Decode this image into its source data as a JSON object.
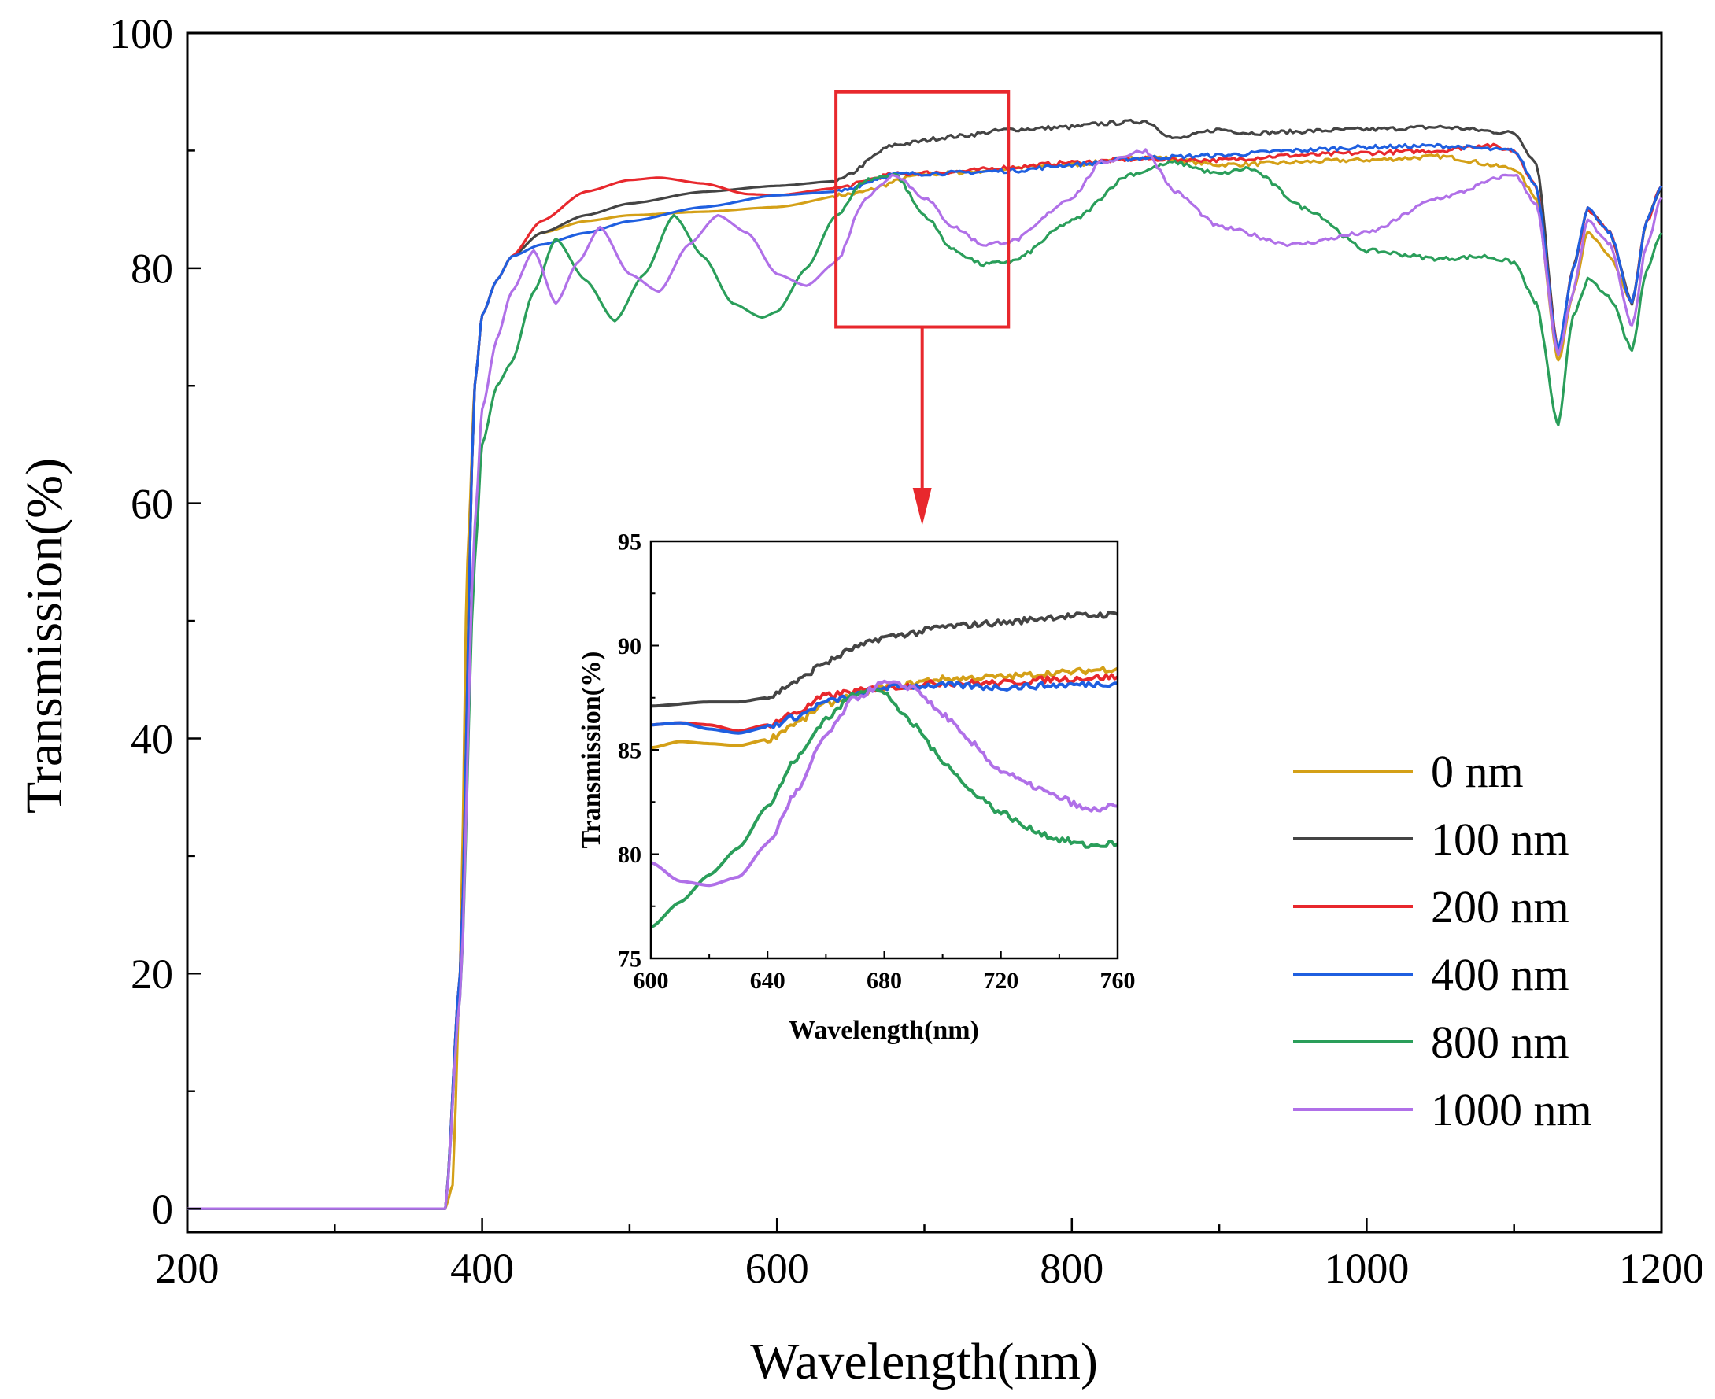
{
  "chart_data": [
    {
      "id": "main",
      "type": "line",
      "title": "",
      "xlabel": "Wavelength(nm)",
      "ylabel": "Transmission(%)",
      "xlim": [
        200,
        1200
      ],
      "ylim": [
        -2,
        100
      ],
      "xticks": [
        200,
        400,
        600,
        800,
        1000,
        1200
      ],
      "xtick_labels": [
        "200",
        "400",
        "600",
        "800",
        "1000",
        "1200"
      ],
      "yticks": [
        0,
        20,
        40,
        60,
        80,
        100
      ],
      "ytick_labels": [
        "0",
        "20",
        "40",
        "60",
        "80",
        "100"
      ],
      "grid": false,
      "legend_position": "bottom-right",
      "series": [
        {
          "name": "0 nm",
          "color": "#d4a017",
          "x": [
            200,
            250,
            300,
            350,
            375,
            380,
            385,
            390,
            395,
            400,
            410,
            420,
            440,
            470,
            500,
            550,
            600,
            650,
            700,
            800,
            850,
            900,
            1000,
            1050,
            1100,
            1115,
            1130,
            1140,
            1150,
            1165,
            1180,
            1190,
            1200
          ],
          "y": [
            0,
            0,
            0,
            0,
            0,
            2,
            20,
            55,
            70,
            76,
            79,
            81,
            83,
            84,
            84.5,
            84.8,
            85.2,
            86.3,
            88,
            88.8,
            89.5,
            88.8,
            89.2,
            89.5,
            88.5,
            86,
            72,
            78,
            83,
            81,
            77,
            84,
            87
          ]
        },
        {
          "name": "100 nm",
          "color": "#444444",
          "x": [
            200,
            375,
            385,
            395,
            400,
            410,
            420,
            440,
            470,
            500,
            550,
            600,
            640,
            680,
            720,
            760,
            800,
            820,
            850,
            870,
            900,
            920,
            1000,
            1050,
            1100,
            1115,
            1130,
            1140,
            1150,
            1165,
            1180,
            1190,
            1200
          ],
          "y": [
            0,
            0,
            20,
            70,
            76,
            79,
            81,
            83,
            84.5,
            85.5,
            86.5,
            87,
            87.4,
            90.5,
            91.2,
            91.8,
            92,
            92.3,
            92.5,
            91,
            91.8,
            91.5,
            91.8,
            92,
            91.5,
            89,
            73,
            80,
            85,
            83,
            77,
            84,
            87
          ]
        },
        {
          "name": "200 nm",
          "color": "#e8282d",
          "x": [
            200,
            375,
            385,
            395,
            400,
            410,
            420,
            440,
            470,
            500,
            520,
            550,
            580,
            600,
            640,
            680,
            720,
            760,
            800,
            850,
            900,
            950,
            1000,
            1050,
            1080,
            1100,
            1115,
            1130,
            1140,
            1150,
            1165,
            1180,
            1190,
            1200
          ],
          "y": [
            0,
            0,
            20,
            70,
            76,
            79,
            81,
            84,
            86.5,
            87.5,
            87.7,
            87.2,
            86.3,
            86.2,
            86.8,
            88,
            88.2,
            88.6,
            89,
            89.3,
            89.2,
            89.6,
            89.8,
            90,
            90.5,
            90,
            87,
            73,
            80,
            85,
            83,
            77,
            84,
            87
          ]
        },
        {
          "name": "400 nm",
          "color": "#1f5fe0",
          "x": [
            200,
            375,
            385,
            395,
            400,
            410,
            420,
            440,
            470,
            500,
            550,
            600,
            640,
            680,
            720,
            760,
            800,
            850,
            900,
            950,
            1000,
            1050,
            1100,
            1115,
            1130,
            1140,
            1150,
            1165,
            1180,
            1190,
            1200
          ],
          "y": [
            0,
            0,
            20,
            70,
            76,
            79,
            81,
            82,
            83,
            84,
            85.2,
            86.2,
            86.5,
            88,
            88.1,
            88.3,
            88.8,
            89.4,
            89.6,
            90,
            90.3,
            90.4,
            90,
            87,
            73,
            80,
            85,
            83,
            77,
            84,
            87
          ]
        },
        {
          "name": "800 nm",
          "color": "#2a9e5a",
          "x": [
            200,
            375,
            385,
            395,
            400,
            410,
            420,
            435,
            450,
            470,
            490,
            510,
            530,
            550,
            570,
            590,
            600,
            620,
            640,
            660,
            680,
            700,
            720,
            740,
            760,
            800,
            840,
            870,
            900,
            920,
            960,
            1000,
            1050,
            1080,
            1100,
            1115,
            1130,
            1140,
            1150,
            1165,
            1180,
            1190,
            1200
          ],
          "y": [
            0,
            0,
            18,
            55,
            65,
            70,
            72,
            78,
            82.5,
            79,
            75.5,
            79.5,
            84.5,
            81,
            77,
            75.8,
            76.3,
            80,
            84.5,
            87.5,
            88,
            84.5,
            81.5,
            80.3,
            80.6,
            84,
            88,
            89,
            88,
            88.5,
            85,
            81.5,
            80.8,
            81,
            80.5,
            77,
            66.5,
            76,
            79,
            77.5,
            73,
            80,
            83
          ]
        },
        {
          "name": "1000 nm",
          "color": "#b070e8",
          "x": [
            200,
            375,
            385,
            395,
            400,
            410,
            420,
            435,
            450,
            465,
            480,
            500,
            520,
            540,
            560,
            580,
            600,
            620,
            640,
            660,
            680,
            700,
            720,
            740,
            760,
            800,
            820,
            850,
            870,
            900,
            950,
            1000,
            1050,
            1100,
            1115,
            1130,
            1140,
            1150,
            1165,
            1180,
            1190,
            1200
          ],
          "y": [
            0,
            0,
            18,
            58,
            68,
            74,
            78,
            81.5,
            77,
            80.5,
            83.5,
            79.5,
            78,
            82,
            84.5,
            83,
            79.5,
            78.5,
            80.5,
            86,
            88,
            86,
            83.5,
            82,
            82.3,
            86,
            89,
            90,
            86.5,
            83.5,
            82,
            83,
            86,
            88,
            85.5,
            72.5,
            78,
            84,
            82,
            75,
            82,
            86
          ]
        }
      ]
    },
    {
      "id": "inset",
      "type": "line",
      "title": "",
      "xlabel": "Wavelength(nm)",
      "ylabel": "Transmission(%)",
      "xlim": [
        600,
        760
      ],
      "ylim": [
        75,
        95
      ],
      "xticks": [
        600,
        640,
        680,
        720,
        760
      ],
      "xtick_labels": [
        "600",
        "640",
        "680",
        "720",
        "760"
      ],
      "yticks": [
        75,
        80,
        85,
        90,
        95
      ],
      "ytick_labels": [
        "75",
        "80",
        "85",
        "90",
        "95"
      ],
      "grid": false,
      "series": [
        {
          "name": "0 nm",
          "color": "#d4a017",
          "x": [
            600,
            610,
            620,
            630,
            640,
            650,
            660,
            670,
            680,
            700,
            720,
            740,
            760
          ],
          "y": [
            85.1,
            85.4,
            85.3,
            85.2,
            85.5,
            86.3,
            87.2,
            87.6,
            88,
            88.4,
            88.5,
            88.7,
            88.9
          ]
        },
        {
          "name": "100 nm",
          "color": "#444444",
          "x": [
            600,
            620,
            630,
            640,
            650,
            660,
            670,
            680,
            690,
            700,
            720,
            740,
            760
          ],
          "y": [
            87.1,
            87.3,
            87.3,
            87.5,
            88.3,
            89.2,
            89.9,
            90.4,
            90.6,
            90.9,
            91.1,
            91.4,
            91.5
          ]
        },
        {
          "name": "200 nm",
          "color": "#e8282d",
          "x": [
            600,
            610,
            620,
            630,
            640,
            650,
            660,
            670,
            680,
            700,
            720,
            740,
            760
          ],
          "y": [
            86.2,
            86.3,
            86.2,
            85.9,
            86.2,
            86.8,
            87.6,
            87.8,
            88,
            88.2,
            88.2,
            88.4,
            88.5
          ]
        },
        {
          "name": "400 nm",
          "color": "#1f5fe0",
          "x": [
            600,
            610,
            620,
            630,
            640,
            650,
            660,
            670,
            680,
            700,
            720,
            740,
            760
          ],
          "y": [
            86.2,
            86.3,
            86,
            85.8,
            86.1,
            86.6,
            87.3,
            87.6,
            88,
            88.1,
            88,
            88.1,
            88.2
          ]
        },
        {
          "name": "800 nm",
          "color": "#2a9e5a",
          "x": [
            600,
            610,
            620,
            630,
            640,
            650,
            660,
            670,
            675,
            680,
            690,
            700,
            710,
            720,
            730,
            740,
            750,
            760
          ],
          "y": [
            76.5,
            77.7,
            79,
            80.3,
            82.3,
            84.6,
            86.5,
            87.7,
            88,
            87.7,
            86.2,
            84.5,
            83,
            82,
            81.2,
            80.7,
            80.4,
            80.5
          ]
        },
        {
          "name": "1000 nm",
          "color": "#b070e8",
          "x": [
            600,
            610,
            620,
            630,
            640,
            650,
            660,
            670,
            680,
            690,
            700,
            710,
            720,
            730,
            740,
            750,
            760
          ],
          "y": [
            79.6,
            78.7,
            78.5,
            78.9,
            80.5,
            83,
            85.7,
            87.5,
            88.2,
            88,
            86.7,
            85.3,
            84,
            83.3,
            82.7,
            82.1,
            82.3
          ]
        }
      ]
    }
  ],
  "legend": {
    "items": [
      {
        "label": "0 nm",
        "color": "#d4a017"
      },
      {
        "label": "100 nm",
        "color": "#444444"
      },
      {
        "label": "200 nm",
        "color": "#e8282d"
      },
      {
        "label": "400 nm",
        "color": "#1f5fe0"
      },
      {
        "label": "800 nm",
        "color": "#2a9e5a"
      },
      {
        "label": "1000 nm",
        "color": "#b070e8"
      }
    ]
  },
  "annotation": {
    "zoom_box_x_range": [
      640,
      757
    ],
    "zoom_box_y_range": [
      75,
      95
    ],
    "zoom_color": "#e8282d"
  }
}
